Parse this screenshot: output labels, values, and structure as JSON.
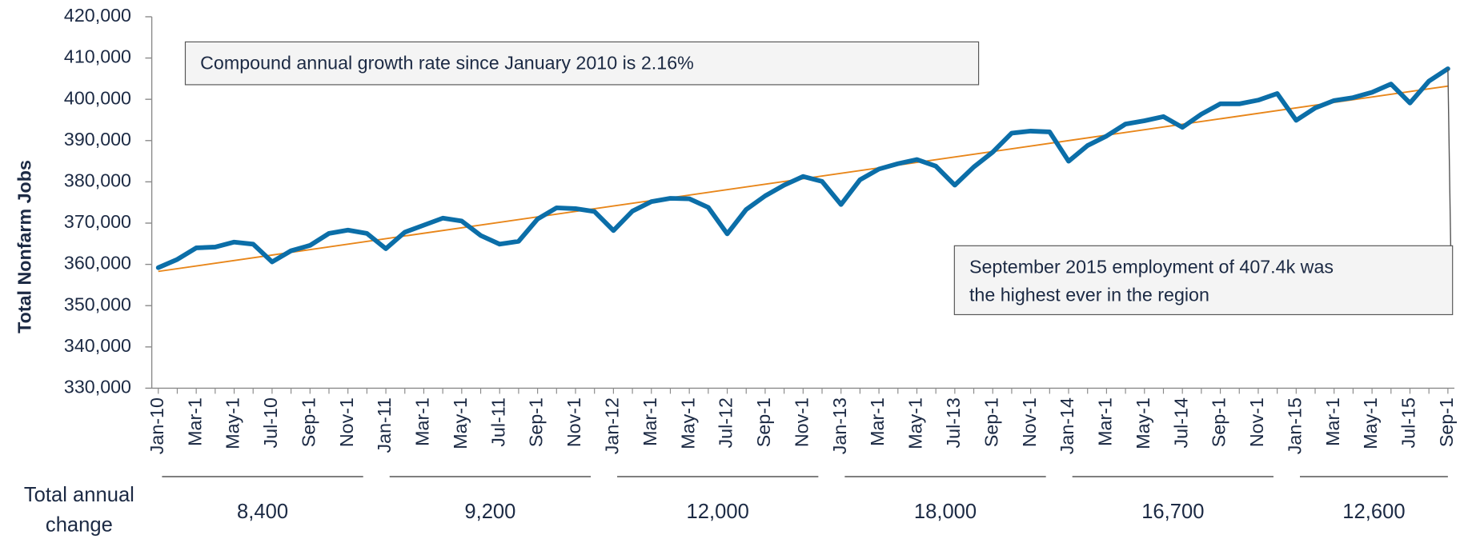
{
  "chart_data": {
    "type": "line",
    "y_axis_label": "Total Nonfarm Jobs",
    "ylim": [
      330000,
      420000
    ],
    "yticks": [
      {
        "value": 330000,
        "label": "330,000"
      },
      {
        "value": 340000,
        "label": "340,000"
      },
      {
        "value": 350000,
        "label": "350,000"
      },
      {
        "value": 360000,
        "label": "360,000"
      },
      {
        "value": 370000,
        "label": "370,000"
      },
      {
        "value": 380000,
        "label": "380,000"
      },
      {
        "value": 390000,
        "label": "390,000"
      },
      {
        "value": 400000,
        "label": "400,000"
      },
      {
        "value": 410000,
        "label": "410,000"
      },
      {
        "value": 420000,
        "label": "420,000"
      }
    ],
    "categories": [
      "Jan-10",
      null,
      "Mar-1",
      null,
      "May-1",
      null,
      "Jul-10",
      null,
      "Sep-1",
      null,
      "Nov-1",
      null,
      "Jan-11",
      null,
      "Mar-1",
      null,
      "May-1",
      null,
      "Jul-11",
      null,
      "Sep-1",
      null,
      "Nov-1",
      null,
      "Jan-12",
      null,
      "Mar-1",
      null,
      "May-1",
      null,
      "Jul-12",
      null,
      "Sep-1",
      null,
      "Nov-1",
      null,
      "Jan-13",
      null,
      "Mar-1",
      null,
      "May-1",
      null,
      "Jul-13",
      null,
      "Sep-1",
      null,
      "Nov-1",
      null,
      "Jan-14",
      null,
      "Mar-1",
      null,
      "May-1",
      null,
      "Jul-14",
      null,
      "Sep-1",
      null,
      "Nov-1",
      null,
      "Jan-15",
      null,
      "Mar-1",
      null,
      "May-1",
      null,
      "Jul-15",
      null,
      "Sep-1"
    ],
    "series": [
      {
        "color": "#0b6ea8",
        "values": [
          359200,
          361200,
          364000,
          364200,
          365400,
          364900,
          360600,
          363300,
          364600,
          367500,
          368300,
          367500,
          363800,
          367800,
          369500,
          371200,
          370500,
          367000,
          364900,
          365600,
          371000,
          373700,
          373500,
          372800,
          368200,
          372900,
          375200,
          376000,
          375900,
          373800,
          367400,
          373300,
          376600,
          379200,
          381300,
          380100,
          374500,
          380500,
          383100,
          384400,
          385400,
          383800,
          379200,
          383600,
          387200,
          391800,
          392300,
          392100,
          385000,
          388800,
          391100,
          394000,
          394800,
          395800,
          393200,
          396400,
          398900,
          398900,
          399800,
          401400,
          394900,
          397900,
          399700,
          400400,
          401700,
          403700,
          399100,
          404400,
          407400
        ]
      }
    ],
    "trendline": {
      "color": "#e8861a",
      "from": 358300,
      "to": 403200
    },
    "annotations": [
      {
        "lines": [
          "Compound annual growth rate since January 2010 is 2.16%"
        ]
      },
      {
        "lines": [
          "September 2015 employment of 407.4k was",
          "the highest ever in the region"
        ]
      }
    ],
    "annual_change": {
      "label_lines": [
        "Total annual",
        "change"
      ],
      "values": [
        8400,
        9200,
        12000,
        18000,
        16700,
        12600
      ],
      "value_labels": [
        "8,400",
        "9,200",
        "12,000",
        "18,000",
        "16,700",
        "12,600"
      ]
    }
  }
}
